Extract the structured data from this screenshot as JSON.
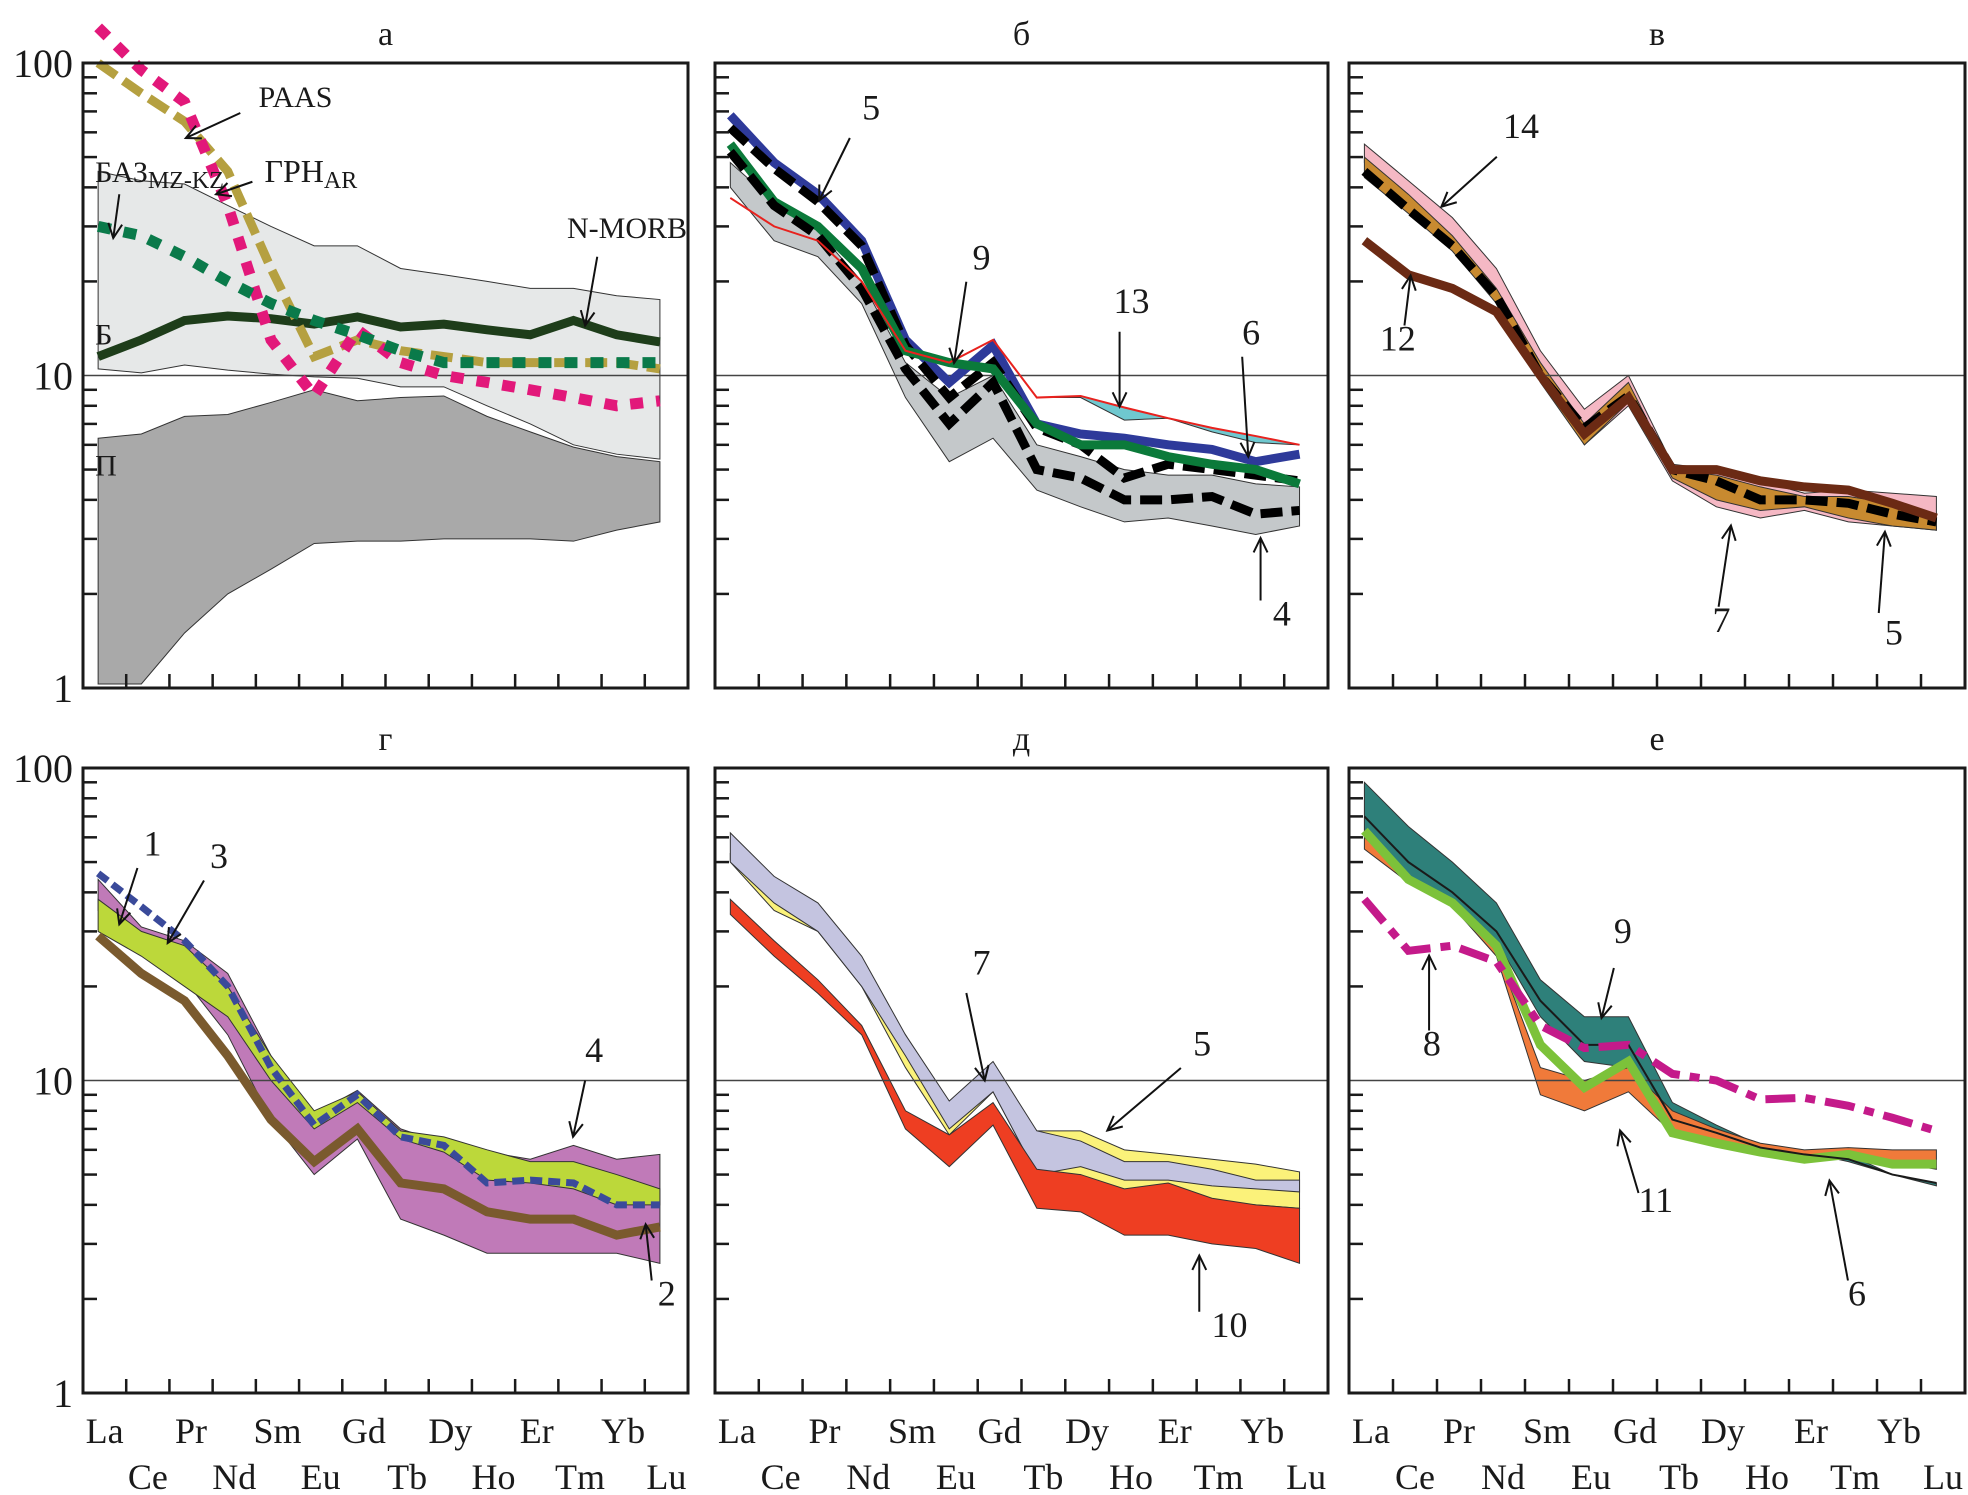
{
  "figure": {
    "y_tick_labels": [
      "100",
      "10",
      "1"
    ],
    "x_labels_row1": [
      "La",
      "Pr",
      "Sm",
      "Gd",
      "Dy",
      "Er",
      "Yb"
    ],
    "x_labels_row2": [
      "Ce",
      "Nd",
      "Eu",
      "Tb",
      "Ho",
      "Tm",
      "Lu"
    ]
  },
  "chart_data": [
    {
      "type": "line",
      "panel": "a",
      "title": "а",
      "yscale": "log",
      "ylim": [
        1,
        100
      ],
      "x": [
        "La",
        "Ce",
        "Pr",
        "Nd",
        "Sm",
        "Eu",
        "Gd",
        "Tb",
        "Dy",
        "Ho",
        "Er",
        "Tm",
        "Yb",
        "Lu"
      ],
      "reference_line": 10,
      "bands": [
        {
          "name": "Б",
          "fill": "#e6e8e8",
          "upper": [
            45,
            42,
            41,
            35,
            30,
            26,
            26,
            22,
            21,
            20,
            19,
            19,
            18,
            17.5
          ],
          "lower": [
            10.5,
            10.2,
            10.8,
            10.4,
            10.1,
            9.9,
            9.8,
            9.2,
            9.2,
            8.0,
            7.0,
            6.0,
            5.6,
            5.4
          ]
        },
        {
          "name": "П",
          "fill": "#a9a9a9",
          "upper": [
            6.3,
            6.5,
            7.4,
            7.5,
            8.2,
            9.0,
            8.3,
            8.5,
            8.6,
            7.4,
            6.6,
            5.9,
            5.5,
            5.3
          ],
          "lower": [
            1.03,
            1.03,
            1.5,
            2.0,
            2.4,
            2.9,
            2.95,
            2.95,
            3.0,
            3.0,
            3.0,
            2.95,
            3.2,
            3.4
          ]
        }
      ],
      "series": [
        {
          "name": "N-MORB",
          "color": "#1e3d1a",
          "style": "solid-thick",
          "values": [
            11.5,
            13,
            15,
            15.5,
            15.2,
            14.6,
            15.4,
            14.3,
            14.6,
            14,
            13.5,
            15,
            13.5,
            12.8
          ]
        },
        {
          "name": "PAAS",
          "color": "#b5a040",
          "style": "dashed-thick",
          "values": [
            100,
            80,
            65,
            45,
            22,
            11.5,
            13,
            12,
            11.5,
            11,
            11,
            11,
            11,
            10.5
          ]
        },
        {
          "name": "ГРН_AR",
          "color": "#e2187a",
          "style": "dotted-thick",
          "values": [
            130,
            95,
            75,
            35,
            13,
            8.6,
            14,
            11,
            10,
            9.5,
            9,
            8.5,
            8,
            8.3
          ]
        },
        {
          "name": "БАЗ_MZ-KZ",
          "color": "#0a7a4a",
          "style": "dotted-thick",
          "values": [
            30,
            28,
            24,
            20,
            17,
            15,
            13.5,
            12,
            11,
            11,
            11,
            11,
            11,
            11
          ]
        }
      ],
      "annotations": [
        "PAAS",
        "ГРН",
        "AR",
        "БАЗ",
        "MZ-KZ",
        "N-MORB",
        "Б",
        "П"
      ]
    },
    {
      "type": "line",
      "panel": "b",
      "title": "б",
      "yscale": "log",
      "ylim": [
        1,
        100
      ],
      "x": [
        "La",
        "Ce",
        "Pr",
        "Nd",
        "Sm",
        "Eu",
        "Gd",
        "Tb",
        "Dy",
        "Ho",
        "Er",
        "Tm",
        "Yb",
        "Lu"
      ],
      "reference_line": 10,
      "bands": [
        {
          "name": "4",
          "fill": "#c4c8ca",
          "upper": [
            48,
            36,
            29,
            20,
            11,
            8.5,
            10,
            6,
            5.5,
            5,
            4.8,
            4.8,
            4.5,
            4.4
          ],
          "lower": [
            40,
            27,
            24,
            17,
            8.5,
            5.3,
            6.3,
            4.3,
            3.8,
            3.4,
            3.5,
            3.3,
            3.1,
            3.3
          ]
        },
        {
          "name": "13",
          "fill": "#6fc8cf",
          "upper": [
            37,
            30,
            27,
            20,
            12,
            11,
            13,
            8.5,
            8.6,
            7.9,
            7.3,
            6.8,
            6.4,
            6
          ],
          "lower": [
            37,
            30,
            27,
            20,
            12,
            11,
            13,
            8.5,
            8.5,
            7.2,
            7.3,
            6.6,
            6.1,
            6
          ]
        }
      ],
      "series": [
        {
          "name": "5",
          "color": "#2e3a9a",
          "style": "solid-thick",
          "values": [
            68,
            48,
            38,
            27,
            13,
            9.5,
            12.5,
            7,
            6.5,
            6.3,
            6,
            5.8,
            5.3,
            5.6
          ]
        },
        {
          "name": "5-dashed",
          "color": "#000000",
          "style": "dashed-thick",
          "values": [
            62,
            46,
            36,
            26,
            12.5,
            8.5,
            11,
            6.8,
            6,
            4.7,
            5.2,
            5,
            4.8,
            4.6
          ]
        },
        {
          "name": "6",
          "color": "#0b7a3a",
          "style": "solid-thick",
          "values": [
            55,
            36,
            30,
            22,
            12,
            11,
            10.5,
            7,
            6,
            6,
            5.5,
            5.2,
            5,
            4.5
          ]
        },
        {
          "name": "4",
          "color": "#000000",
          "style": "dashed-thick",
          "values": [
            52,
            35,
            28,
            19,
            10.5,
            7,
            9.5,
            5,
            4.7,
            4,
            4,
            4.1,
            3.6,
            3.7
          ]
        },
        {
          "name": "9",
          "color": "#e8221e",
          "style": "solid-thin",
          "values": [
            37,
            30,
            27,
            20,
            12,
            11,
            13,
            8.5,
            8.6,
            7.9,
            7.3,
            6.8,
            6.4,
            6
          ]
        }
      ],
      "annotations": [
        "5",
        "9",
        "13",
        "6",
        "4"
      ]
    },
    {
      "type": "line",
      "panel": "v",
      "title": "в",
      "yscale": "log",
      "ylim": [
        1,
        100
      ],
      "x": [
        "La",
        "Ce",
        "Pr",
        "Nd",
        "Sm",
        "Eu",
        "Gd",
        "Tb",
        "Dy",
        "Ho",
        "Er",
        "Tm",
        "Yb",
        "Lu"
      ],
      "reference_line": 10,
      "bands": [
        {
          "name": "14",
          "fill": "#f5b8c4",
          "upper": [
            55,
            42,
            32,
            22,
            12,
            7.8,
            10,
            5.2,
            5,
            4.6,
            4.2,
            4.3,
            4.2,
            4.1
          ],
          "lower": [
            48,
            35,
            26,
            18,
            10,
            6,
            8,
            4.6,
            3.8,
            3.5,
            3.7,
            3.4,
            3.3,
            3.2
          ]
        },
        {
          "name": "7",
          "fill": "#c88a30",
          "upper": [
            50,
            38,
            28,
            19,
            11,
            7,
            9.5,
            5,
            4.8,
            4.4,
            4.1,
            4.1,
            3.9,
            3.5
          ],
          "lower": [
            43,
            33,
            25,
            17,
            9.5,
            6,
            8.2,
            4.7,
            4,
            3.7,
            3.8,
            3.5,
            3.3,
            3.2
          ]
        }
      ],
      "series": [
        {
          "name": "5",
          "color": "#000000",
          "style": "dashed-thick",
          "values": [
            45,
            34,
            26,
            18,
            10,
            6.8,
            8.6,
            5,
            4.6,
            4,
            4,
            3.9,
            3.6,
            3.4
          ]
        },
        {
          "name": "12",
          "color": "#6b2a14",
          "style": "solid-thick",
          "values": [
            27,
            21,
            19,
            16,
            10,
            6.5,
            8.5,
            5,
            5,
            4.6,
            4.4,
            4.3,
            3.9,
            3.5
          ]
        }
      ],
      "annotations": [
        "14",
        "12",
        "7",
        "5"
      ]
    },
    {
      "type": "line",
      "panel": "g",
      "title": "г",
      "yscale": "log",
      "ylim": [
        1,
        100
      ],
      "x": [
        "La",
        "Ce",
        "Pr",
        "Nd",
        "Sm",
        "Eu",
        "Gd",
        "Tb",
        "Dy",
        "Ho",
        "Er",
        "Tm",
        "Yb",
        "Lu"
      ],
      "reference_line": 10,
      "bands": [
        {
          "name": "4",
          "fill": "#c07ab8",
          "upper": [
            44,
            31,
            28,
            22,
            12,
            7.8,
            9.3,
            7,
            6.3,
            5.9,
            5.6,
            6.2,
            5.6,
            5.8
          ],
          "lower": [
            35,
            27,
            21,
            14,
            7.5,
            5.0,
            6.5,
            3.6,
            3.2,
            2.8,
            2.8,
            2.8,
            2.8,
            2.6
          ]
        },
        {
          "name": "1",
          "fill": "#bcd83a",
          "upper": [
            38,
            30,
            27,
            20,
            12,
            8,
            9.2,
            6.9,
            6.6,
            6,
            5.5,
            5.5,
            5,
            4.5
          ],
          "lower": [
            30,
            25,
            20,
            16,
            10,
            7,
            8.5,
            6.5,
            5.9,
            4.8,
            4.7,
            4.5,
            4,
            4
          ]
        }
      ],
      "series": [
        {
          "name": "3",
          "color": "#3a4a9a",
          "style": "dashed-medium",
          "values": [
            46,
            36,
            28,
            20,
            11,
            7.2,
            9,
            6.6,
            6.2,
            4.7,
            4.8,
            4.7,
            4,
            4
          ]
        },
        {
          "name": "2",
          "color": "#7a5a2e",
          "style": "solid-thick",
          "values": [
            29,
            22,
            18,
            12,
            7.5,
            5.5,
            7,
            4.7,
            4.5,
            3.8,
            3.6,
            3.6,
            3.2,
            3.4
          ]
        }
      ],
      "annotations": [
        "1",
        "3",
        "4",
        "2"
      ]
    },
    {
      "type": "line",
      "panel": "d",
      "title": "д",
      "yscale": "log",
      "ylim": [
        1,
        100
      ],
      "x": [
        "La",
        "Ce",
        "Pr",
        "Nd",
        "Sm",
        "Eu",
        "Gd",
        "Tb",
        "Dy",
        "Ho",
        "Er",
        "Tm",
        "Yb",
        "Lu"
      ],
      "reference_line": 10,
      "bands": [
        {
          "name": "5",
          "fill": "#fbf27a",
          "upper": [
            53,
            38,
            31,
            22,
            14,
            8.2,
            10.5,
            6.9,
            6.9,
            6,
            5.8,
            5.6,
            5.4,
            5.1
          ],
          "lower": [
            50,
            35,
            30,
            20,
            11,
            6.7,
            9.2,
            5,
            5,
            4.2,
            4.4,
            4.1,
            4,
            3.9
          ]
        },
        {
          "name": "7",
          "fill": "#c4c4e0",
          "upper": [
            62,
            45,
            37,
            25,
            14,
            8.6,
            11.5,
            6.9,
            6.4,
            5.5,
            5.5,
            5.2,
            4.8,
            4.8
          ],
          "lower": [
            50,
            37,
            30,
            20,
            12,
            7,
            9.2,
            5,
            5.3,
            4.8,
            4.8,
            4.6,
            4.5,
            4.4
          ]
        },
        {
          "name": "10",
          "fill": "#ee3e22",
          "upper": [
            38,
            28,
            21,
            15,
            8,
            6.7,
            8.5,
            5.2,
            5,
            4.5,
            4.7,
            4.2,
            4,
            3.9
          ],
          "lower": [
            34,
            25,
            19,
            14,
            7,
            5.3,
            7.2,
            3.9,
            3.8,
            3.2,
            3.2,
            3,
            2.9,
            2.6
          ]
        }
      ],
      "series": [],
      "annotations": [
        "7",
        "5",
        "10"
      ]
    },
    {
      "type": "line",
      "panel": "e",
      "title": "е",
      "yscale": "log",
      "ylim": [
        1,
        100
      ],
      "x": [
        "La",
        "Ce",
        "Pr",
        "Nd",
        "Sm",
        "Eu",
        "Gd",
        "Tb",
        "Dy",
        "Ho",
        "Er",
        "Tm",
        "Yb",
        "Lu"
      ],
      "reference_line": 10,
      "bands": [
        {
          "name": "9",
          "fill": "#2e807a",
          "upper": [
            90,
            65,
            50,
            37,
            21,
            16,
            16,
            8.5,
            7.2,
            6.2,
            5.9,
            5.5,
            5,
            4.7
          ],
          "lower": [
            62,
            45,
            37,
            28,
            16,
            11.5,
            11,
            6.8,
            6.5,
            6,
            5.8,
            5.8,
            5,
            4.6
          ]
        },
        {
          "name": "11",
          "fill": "#f07a3a",
          "upper": [
            60,
            45,
            37,
            26,
            11,
            10,
            11,
            8,
            7,
            6.3,
            6,
            6.1,
            6,
            6
          ],
          "lower": [
            55,
            43,
            36,
            25,
            9,
            8,
            9.2,
            6.8,
            6.4,
            5.8,
            5.5,
            5.7,
            5.5,
            5.2
          ]
        }
      ],
      "series": [
        {
          "name": "6",
          "color": "#7cc23a",
          "style": "solid-thick",
          "values": [
            63,
            44,
            37,
            27,
            13,
            9.5,
            11.5,
            6.8,
            6.3,
            5.9,
            5.6,
            5.8,
            5.4,
            5.4
          ]
        },
        {
          "name": "9-mid",
          "color": "#1a1a1a",
          "style": "solid-thin",
          "values": [
            70,
            50,
            40,
            30,
            18,
            13,
            13,
            7.5,
            6.8,
            6.1,
            5.8,
            5.6,
            5,
            4.7
          ]
        },
        {
          "name": "8",
          "color": "#c41a8a",
          "style": "dashdot-thick",
          "values": [
            38,
            26,
            27,
            24,
            15,
            12.7,
            13,
            10.5,
            10,
            8.7,
            8.8,
            8.3,
            7.6,
            6.9
          ]
        }
      ],
      "annotations": [
        "9",
        "8",
        "11",
        "6"
      ]
    }
  ]
}
